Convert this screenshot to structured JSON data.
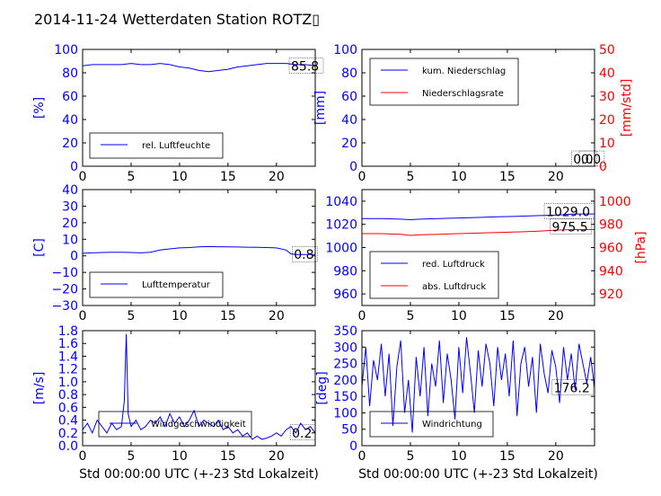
{
  "title": "2014-11-24 Wetterdaten Station ROTZ▯",
  "colors": {
    "primary": "#0000ff",
    "secondary": "#ff0000",
    "frame": "#000000"
  },
  "chart_data": [
    {
      "id": "humidity",
      "type": "line",
      "ylabel": "[%]",
      "xlim": [
        0,
        24
      ],
      "ylim": [
        0,
        100
      ],
      "xticks": [
        0,
        5,
        10,
        15,
        20
      ],
      "yticks": [
        0,
        20,
        40,
        60,
        80,
        100
      ],
      "legend_position": "lower-left",
      "series": [
        {
          "name": "rel. Luftfeuchte",
          "color": "#0000ff",
          "x": [
            0,
            1,
            2,
            3,
            4,
            5,
            6,
            7,
            8,
            9,
            10,
            11,
            12,
            13,
            14,
            15,
            16,
            17,
            18,
            19,
            20,
            21,
            22,
            23,
            24
          ],
          "y": [
            86,
            87,
            87,
            87,
            87,
            88,
            87,
            87,
            88,
            87,
            85,
            84,
            82,
            81,
            82,
            83,
            85,
            86,
            87,
            88,
            88,
            88,
            87,
            87,
            86
          ]
        }
      ],
      "annotations": [
        {
          "text": "85.8",
          "x": 21.5,
          "y": 85.8
        }
      ]
    },
    {
      "id": "precipitation",
      "type": "line",
      "ylabel": "[mm]",
      "ylabel_right": "[mm/std]",
      "xlim": [
        0,
        24
      ],
      "ylim": [
        0,
        100
      ],
      "ylim_right": [
        0,
        50
      ],
      "xticks": [
        0,
        5,
        10,
        15,
        20
      ],
      "yticks": [
        0,
        20,
        40,
        60,
        80,
        100
      ],
      "yticks_right": [
        0,
        10,
        20,
        30,
        40,
        50
      ],
      "legend_position": "upper-left",
      "series": [
        {
          "name": "kum. Niederschlag",
          "color": "#0000ff",
          "x": [
            0,
            24
          ],
          "y": [
            0,
            0
          ]
        },
        {
          "name": "Niederschlagsrate",
          "color": "#ff0000",
          "axis": "right",
          "x": [
            0,
            24
          ],
          "y": [
            0,
            0
          ]
        }
      ],
      "annotations": [
        {
          "text": "0.0",
          "x": 22.6,
          "y": 0
        },
        {
          "text": "0.0",
          "x": 21.8,
          "y": 0
        }
      ]
    },
    {
      "id": "temperature",
      "type": "line",
      "ylabel": "[C]",
      "xlim": [
        0,
        24
      ],
      "ylim": [
        -30,
        40
      ],
      "xticks": [
        0,
        5,
        10,
        15,
        20
      ],
      "yticks": [
        -30,
        -20,
        -10,
        0,
        10,
        20,
        30,
        40
      ],
      "legend_position": "lower-left",
      "series": [
        {
          "name": "Lufttemperatur",
          "color": "#0000ff",
          "x": [
            0,
            1,
            2,
            3,
            4,
            5,
            6,
            7,
            8,
            9,
            10,
            11,
            12,
            13,
            14,
            15,
            16,
            17,
            18,
            19,
            20,
            21,
            21.5,
            22,
            23,
            24
          ],
          "y": [
            1.5,
            1.8,
            2,
            2.2,
            2.2,
            2.0,
            1.8,
            2.2,
            3.5,
            4.2,
            4.8,
            5.0,
            5.4,
            5.6,
            5.5,
            5.4,
            5.3,
            5.2,
            5.1,
            5.0,
            4.8,
            3.5,
            1.2,
            0.8,
            0.8,
            0.8
          ]
        }
      ],
      "annotations": [
        {
          "text": "0.8",
          "x": 21.8,
          "y": 0.8
        }
      ]
    },
    {
      "id": "pressure",
      "type": "line",
      "ylabel_right": "[hPa]",
      "xlim": [
        0,
        24
      ],
      "ylim": [
        950,
        1050
      ],
      "ylim_right": [
        910,
        1010
      ],
      "xticks": [
        0,
        5,
        10,
        15,
        20
      ],
      "yticks": [
        960,
        980,
        1000,
        1020,
        1040
      ],
      "yticks_right": [
        920,
        940,
        960,
        980,
        1000
      ],
      "legend_position": "lower-left",
      "series": [
        {
          "name": "red. Luftdruck",
          "color": "#0000ff",
          "x": [
            0,
            2,
            4,
            5,
            6,
            8,
            10,
            12,
            14,
            16,
            18,
            20,
            22,
            24
          ],
          "y": [
            1025,
            1025,
            1024.5,
            1024,
            1024.5,
            1025,
            1025.5,
            1026,
            1026.5,
            1027,
            1027.5,
            1028,
            1029,
            1029
          ]
        },
        {
          "name": "abs. Luftdruck",
          "color": "#ff0000",
          "axis": "right",
          "x": [
            0,
            2,
            4,
            5,
            6,
            8,
            10,
            12,
            14,
            16,
            18,
            20,
            22,
            24
          ],
          "y": [
            972,
            972,
            971.5,
            970.5,
            971,
            971.5,
            972,
            972.5,
            973,
            973.5,
            974,
            975,
            975.5,
            975.5
          ]
        }
      ],
      "annotations": [
        {
          "text": "1029.0",
          "x": 19,
          "y": 1031
        },
        {
          "text": "975.5",
          "x": 19.6,
          "y": 1018
        }
      ]
    },
    {
      "id": "windspeed",
      "type": "line",
      "ylabel": "[m/s]",
      "xlabel": "Std 00:00:00 UTC (+-23 Std Lokalzeit)",
      "xlim": [
        0,
        24
      ],
      "ylim": [
        0,
        1.8
      ],
      "xticks": [
        0,
        5,
        10,
        15,
        20
      ],
      "yticks": [
        0.0,
        0.2,
        0.4,
        0.6,
        0.8,
        1.0,
        1.2,
        1.4,
        1.6,
        1.8
      ],
      "legend_position": "lower-center",
      "series": [
        {
          "name": "Windgeschwindigkeit",
          "color": "#0000ff",
          "x": [
            0,
            0.5,
            1,
            1.5,
            2,
            2.5,
            3,
            3.5,
            4,
            4.3,
            4.5,
            4.7,
            5,
            5.5,
            6,
            6.5,
            7,
            7.5,
            8,
            8.5,
            9,
            9.5,
            10,
            10.5,
            11,
            11.5,
            12,
            12.5,
            13,
            13.5,
            14,
            14.5,
            15,
            15.5,
            16,
            16.5,
            17,
            17.5,
            18,
            18.5,
            19,
            19.5,
            20,
            20.5,
            21,
            21.5,
            22,
            22.5,
            23,
            23.5,
            24
          ],
          "y": [
            0.25,
            0.35,
            0.2,
            0.4,
            0.3,
            0.2,
            0.35,
            0.25,
            0.3,
            0.7,
            1.75,
            0.5,
            0.3,
            0.4,
            0.25,
            0.3,
            0.4,
            0.35,
            0.45,
            0.3,
            0.5,
            0.35,
            0.45,
            0.3,
            0.4,
            0.55,
            0.3,
            0.4,
            0.35,
            0.3,
            0.4,
            0.25,
            0.3,
            0.2,
            0.25,
            0.15,
            0.2,
            0.1,
            0.15,
            0.1,
            0.12,
            0.15,
            0.2,
            0.15,
            0.25,
            0.3,
            0.2,
            0.35,
            0.25,
            0.3,
            0.2
          ]
        }
      ],
      "annotations": [
        {
          "text": "0.2",
          "x": 21.6,
          "y": 0.2
        }
      ]
    },
    {
      "id": "winddirection",
      "type": "line",
      "ylabel": "[deg]",
      "xlabel": "Std 00:00:00 UTC (+-23 Std Lokalzeit)",
      "xlim": [
        0,
        24
      ],
      "ylim": [
        0,
        350
      ],
      "xticks": [
        0,
        5,
        10,
        15,
        20
      ],
      "yticks": [
        0,
        50,
        100,
        150,
        200,
        250,
        300,
        350
      ],
      "legend_position": "lower-left",
      "series": [
        {
          "name": "Windrichtung",
          "color": "#0000ff",
          "x": [
            0,
            0.4,
            0.8,
            1.2,
            1.6,
            2,
            2.4,
            2.8,
            3.2,
            3.6,
            4,
            4.4,
            4.8,
            5.2,
            5.6,
            6,
            6.4,
            6.8,
            7.2,
            7.6,
            8,
            8.4,
            8.8,
            9.2,
            9.6,
            10,
            10.4,
            10.8,
            11.2,
            11.6,
            12,
            12.4,
            12.8,
            13.2,
            13.6,
            14,
            14.4,
            14.8,
            15.2,
            15.6,
            16,
            16.4,
            16.8,
            17.2,
            17.6,
            18,
            18.4,
            18.8,
            19.2,
            19.6,
            20,
            20.4,
            20.8,
            21.2,
            21.6,
            22,
            22.4,
            22.8,
            23.2,
            23.6,
            24
          ],
          "y": [
            180,
            300,
            120,
            260,
            200,
            310,
            150,
            280,
            60,
            240,
            320,
            100,
            200,
            40,
            270,
            150,
            300,
            90,
            250,
            180,
            320,
            130,
            280,
            200,
            80,
            300,
            160,
            330,
            220,
            100,
            290,
            180,
            310,
            250,
            120,
            300,
            200,
            280,
            150,
            320,
            90,
            250,
            300,
            180,
            270,
            100,
            310,
            220,
            160,
            290,
            240,
            130,
            300,
            200,
            280,
            170,
            310,
            250,
            190,
            270,
            176
          ]
        }
      ],
      "annotations": [
        {
          "text": "176.2",
          "x": 19.8,
          "y": 176
        }
      ]
    }
  ]
}
